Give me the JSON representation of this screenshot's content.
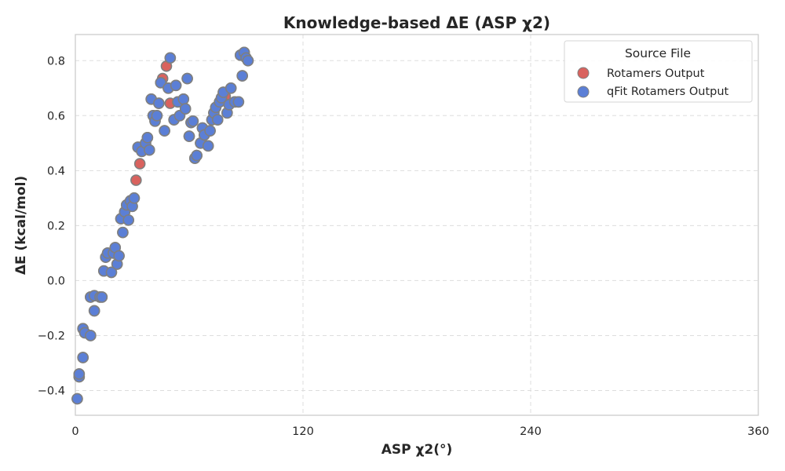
{
  "chart_data": {
    "type": "scatter",
    "title": "Knowledge-based ΔE (ASP χ2)",
    "xlabel": "ASP χ2(°)",
    "ylabel": "ΔE (kcal/mol)",
    "xlim": [
      0,
      360
    ],
    "ylim": [
      -0.49,
      0.895
    ],
    "xticks": [
      0,
      120,
      240,
      360
    ],
    "xtick_labels": [
      "0",
      "120",
      "240",
      "360"
    ],
    "yticks": [
      -0.4,
      -0.2,
      0.0,
      0.2,
      0.4,
      0.6,
      0.8
    ],
    "ytick_labels": [
      "−0.4",
      "−0.2",
      "0.0",
      "0.2",
      "0.4",
      "0.6",
      "0.8"
    ],
    "grid": true,
    "legend": {
      "title": "Source File",
      "placement": "top-right",
      "entries": [
        "Rotamers Output",
        "qFit Rotamers Output"
      ]
    },
    "series": [
      {
        "name": "Rotamers Output",
        "color": "#d9625e",
        "points": [
          [
            1,
            -0.43
          ],
          [
            2,
            -0.35
          ],
          [
            2,
            -0.34
          ],
          [
            4,
            -0.28
          ],
          [
            4,
            -0.175
          ],
          [
            5,
            -0.19
          ],
          [
            8,
            -0.2
          ],
          [
            8,
            -0.06
          ],
          [
            10,
            -0.11
          ],
          [
            10,
            -0.055
          ],
          [
            13,
            -0.06
          ],
          [
            14,
            -0.06
          ],
          [
            15,
            0.035
          ],
          [
            16,
            0.085
          ],
          [
            17,
            0.1
          ],
          [
            19,
            0.03
          ],
          [
            20,
            0.1
          ],
          [
            21,
            0.12
          ],
          [
            22,
            0.06
          ],
          [
            23,
            0.09
          ],
          [
            24,
            0.225
          ],
          [
            25,
            0.175
          ],
          [
            26,
            0.25
          ],
          [
            27,
            0.275
          ],
          [
            28,
            0.22
          ],
          [
            29,
            0.29
          ],
          [
            30,
            0.27
          ],
          [
            31,
            0.3
          ],
          [
            32,
            0.365
          ],
          [
            33,
            0.485
          ],
          [
            34,
            0.425
          ],
          [
            35,
            0.47
          ],
          [
            37,
            0.5
          ],
          [
            38,
            0.52
          ],
          [
            39,
            0.475
          ],
          [
            40,
            0.66
          ],
          [
            41,
            0.6
          ],
          [
            42,
            0.58
          ],
          [
            43,
            0.6
          ],
          [
            44,
            0.645
          ],
          [
            45,
            0.72
          ],
          [
            46,
            0.735
          ],
          [
            47,
            0.545
          ],
          [
            48,
            0.78
          ],
          [
            49,
            0.7
          ],
          [
            50,
            0.81
          ],
          [
            50,
            0.645
          ],
          [
            52,
            0.585
          ],
          [
            53,
            0.71
          ],
          [
            54,
            0.65
          ],
          [
            55,
            0.6
          ],
          [
            57,
            0.66
          ],
          [
            58,
            0.625
          ],
          [
            59,
            0.735
          ],
          [
            60,
            0.525
          ],
          [
            61,
            0.575
          ],
          [
            62,
            0.58
          ],
          [
            63,
            0.445
          ],
          [
            64,
            0.455
          ],
          [
            66,
            0.5
          ],
          [
            67,
            0.555
          ],
          [
            68,
            0.53
          ],
          [
            70,
            0.49
          ],
          [
            71,
            0.545
          ],
          [
            72,
            0.585
          ],
          [
            73,
            0.61
          ],
          [
            74,
            0.63
          ],
          [
            75,
            0.585
          ],
          [
            76,
            0.65
          ],
          [
            77,
            0.665
          ],
          [
            78,
            0.685
          ],
          [
            79,
            0.67
          ],
          [
            80,
            0.61
          ],
          [
            81,
            0.64
          ],
          [
            82,
            0.7
          ],
          [
            84,
            0.65
          ],
          [
            86,
            0.65
          ],
          [
            87,
            0.82
          ],
          [
            88,
            0.745
          ],
          [
            89,
            0.83
          ],
          [
            90,
            0.81
          ],
          [
            91,
            0.8
          ]
        ]
      },
      {
        "name": "qFit Rotamers Output",
        "color": "#5b7fd6",
        "points": [
          [
            1,
            -0.43
          ],
          [
            2,
            -0.35
          ],
          [
            2,
            -0.34
          ],
          [
            4,
            -0.28
          ],
          [
            4,
            -0.175
          ],
          [
            5,
            -0.19
          ],
          [
            8,
            -0.2
          ],
          [
            8,
            -0.06
          ],
          [
            10,
            -0.11
          ],
          [
            10,
            -0.055
          ],
          [
            13,
            -0.06
          ],
          [
            14,
            -0.06
          ],
          [
            15,
            0.035
          ],
          [
            16,
            0.085
          ],
          [
            17,
            0.1
          ],
          [
            19,
            0.03
          ],
          [
            20,
            0.1
          ],
          [
            21,
            0.12
          ],
          [
            22,
            0.06
          ],
          [
            23,
            0.09
          ],
          [
            24,
            0.225
          ],
          [
            25,
            0.175
          ],
          [
            26,
            0.25
          ],
          [
            27,
            0.275
          ],
          [
            28,
            0.22
          ],
          [
            29,
            0.29
          ],
          [
            30,
            0.27
          ],
          [
            31,
            0.3
          ],
          [
            33,
            0.485
          ],
          [
            35,
            0.47
          ],
          [
            37,
            0.5
          ],
          [
            38,
            0.52
          ],
          [
            39,
            0.475
          ],
          [
            40,
            0.66
          ],
          [
            41,
            0.6
          ],
          [
            42,
            0.58
          ],
          [
            43,
            0.6
          ],
          [
            44,
            0.645
          ],
          [
            45,
            0.72
          ],
          [
            47,
            0.545
          ],
          [
            49,
            0.7
          ],
          [
            50,
            0.81
          ],
          [
            52,
            0.585
          ],
          [
            53,
            0.71
          ],
          [
            54,
            0.65
          ],
          [
            55,
            0.6
          ],
          [
            57,
            0.66
          ],
          [
            58,
            0.625
          ],
          [
            59,
            0.735
          ],
          [
            60,
            0.525
          ],
          [
            61,
            0.575
          ],
          [
            62,
            0.58
          ],
          [
            63,
            0.445
          ],
          [
            64,
            0.455
          ],
          [
            66,
            0.5
          ],
          [
            67,
            0.555
          ],
          [
            68,
            0.53
          ],
          [
            70,
            0.49
          ],
          [
            71,
            0.545
          ],
          [
            72,
            0.585
          ],
          [
            73,
            0.61
          ],
          [
            74,
            0.63
          ],
          [
            75,
            0.585
          ],
          [
            76,
            0.65
          ],
          [
            77,
            0.665
          ],
          [
            78,
            0.685
          ],
          [
            80,
            0.61
          ],
          [
            81,
            0.64
          ],
          [
            82,
            0.7
          ],
          [
            84,
            0.65
          ],
          [
            86,
            0.65
          ],
          [
            87,
            0.82
          ],
          [
            88,
            0.745
          ],
          [
            89,
            0.83
          ],
          [
            90,
            0.81
          ],
          [
            91,
            0.8
          ]
        ]
      }
    ]
  }
}
